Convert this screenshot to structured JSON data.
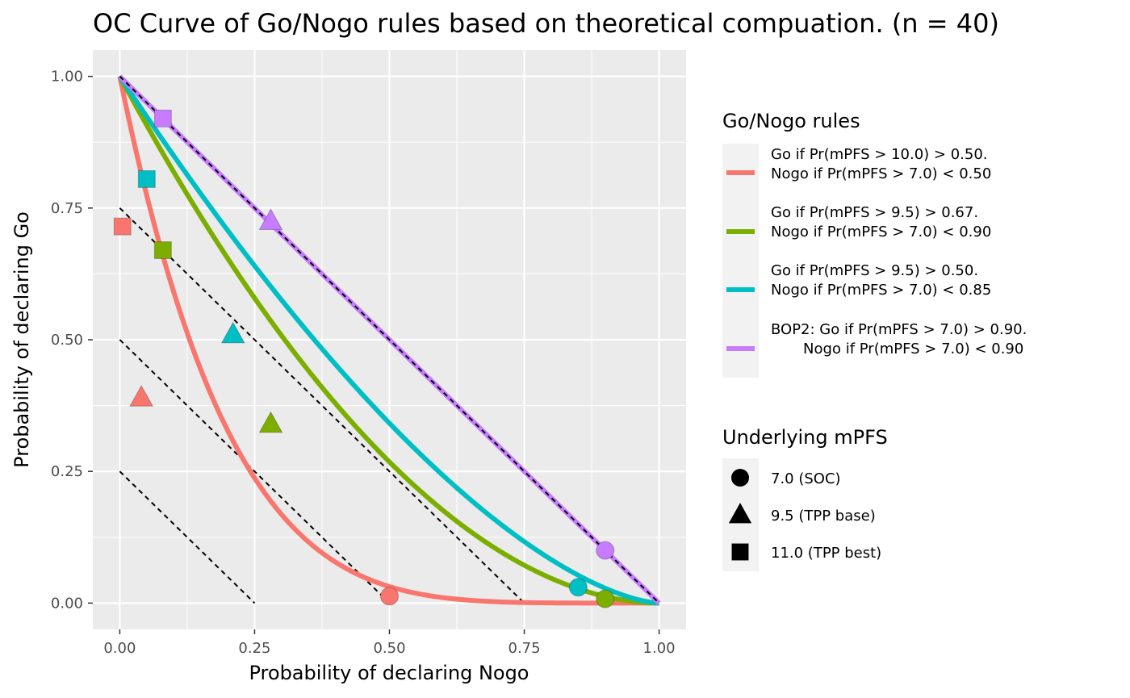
{
  "chart_data": {
    "type": "line",
    "title": "OC Curve of Go/Nogo rules based on theoretical compuation. (n = 40)",
    "xlabel": "Probability of declaring Nogo",
    "ylabel": "Probability of declaring Go",
    "xlim": [
      -0.05,
      1.05
    ],
    "ylim": [
      -0.05,
      1.05
    ],
    "x_ticks": [
      0.0,
      0.25,
      0.5,
      0.75,
      1.0
    ],
    "x_tick_labels": [
      "0.00",
      "0.25",
      "0.50",
      "0.75",
      "1.00"
    ],
    "y_ticks": [
      0.0,
      0.25,
      0.5,
      0.75,
      1.0
    ],
    "y_tick_labels": [
      "0.00",
      "0.25",
      "0.50",
      "0.75",
      "1.00"
    ],
    "reference_lines": [
      {
        "x": [
          0,
          0.25
        ],
        "y": [
          0.25,
          0
        ]
      },
      {
        "x": [
          0,
          0.5
        ],
        "y": [
          0.5,
          0
        ]
      },
      {
        "x": [
          0,
          0.75
        ],
        "y": [
          0.75,
          0
        ]
      },
      {
        "x": [
          0,
          1.0
        ],
        "y": [
          1.0,
          0
        ]
      }
    ],
    "series": [
      {
        "name": "Go if Pr(mPFS > 10.0) > 0.50.\nNogo if Pr(mPFS > 7.0) < 0.50",
        "color": "#F8766D",
        "curve_k": 5.0,
        "points": [
          {
            "x": 0.5,
            "y": 0.013,
            "shape": "circle"
          },
          {
            "x": 0.04,
            "y": 0.39,
            "shape": "triangle"
          },
          {
            "x": 0.005,
            "y": 0.715,
            "shape": "square"
          }
        ]
      },
      {
        "name": "Go if Pr(mPFS > 9.5) > 0.67.\nNogo if Pr(mPFS > 7.0) < 0.90",
        "color": "#7CAE00",
        "curve_k": 1.9,
        "points": [
          {
            "x": 0.9,
            "y": 0.008,
            "shape": "circle"
          },
          {
            "x": 0.28,
            "y": 0.34,
            "shape": "triangle"
          },
          {
            "x": 0.08,
            "y": 0.67,
            "shape": "square"
          }
        ]
      },
      {
        "name": "Go if Pr(mPFS > 9.5) > 0.50.\nNogo if Pr(mPFS > 7.0) < 0.85",
        "color": "#00BFC4",
        "curve_k": 1.55,
        "points": [
          {
            "x": 0.85,
            "y": 0.03,
            "shape": "circle"
          },
          {
            "x": 0.21,
            "y": 0.51,
            "shape": "triangle"
          },
          {
            "x": 0.05,
            "y": 0.805,
            "shape": "square"
          }
        ]
      },
      {
        "name": "BOP2: Go if Pr(mPFS > 7.0) > 0.90.\n       Nogo if Pr(mPFS > 7.0) < 0.90",
        "color": "#C77CFF",
        "curve_k": 1.0,
        "points": [
          {
            "x": 0.9,
            "y": 0.1,
            "shape": "circle"
          },
          {
            "x": 0.28,
            "y": 0.725,
            "shape": "triangle"
          },
          {
            "x": 0.08,
            "y": 0.92,
            "shape": "square"
          }
        ]
      }
    ],
    "legend_rules_title": "Go/Nogo rules",
    "legend_shapes_title": "Underlying mPFS",
    "shape_legend": [
      {
        "label": "7.0 (SOC)",
        "shape": "circle"
      },
      {
        "label": "9.5 (TPP base)",
        "shape": "triangle"
      },
      {
        "label": "11.0 (TPP best)",
        "shape": "square"
      }
    ]
  }
}
